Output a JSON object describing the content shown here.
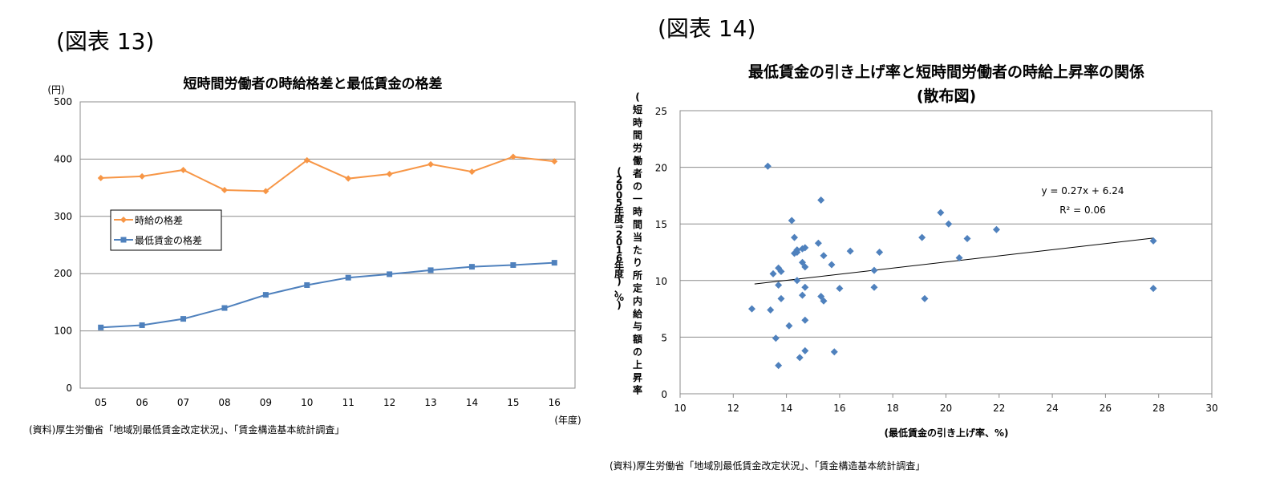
{
  "figure13_label": "(図表 13)",
  "figure14_label": "(図表 14)",
  "source13": "(資料)厚生労働省「地域別最低賃金改定状況」、「賃金構造基本統計調査」",
  "source14": "(資料)厚生労働省「地域別最低賃金改定状況」、「賃金構造基本統計調査」",
  "chart_data": [
    {
      "type": "line",
      "title": "短時間労働者の時給格差と最低賃金の格差",
      "ylabel": "(円)",
      "xlabel": "(年度)",
      "categories": [
        "05",
        "06",
        "07",
        "08",
        "09",
        "10",
        "11",
        "12",
        "13",
        "14",
        "15",
        "16"
      ],
      "ylim": [
        0,
        500
      ],
      "yticks": [
        0,
        100,
        200,
        300,
        400,
        500
      ],
      "grid": true,
      "legend": "center-left",
      "series": [
        {
          "name": "時給の格差",
          "color": "#F79646",
          "marker": "diamond",
          "values": [
            367,
            370,
            381,
            346,
            344,
            398,
            366,
            374,
            391,
            378,
            404,
            396
          ]
        },
        {
          "name": "最低賃金の格差",
          "color": "#4F81BD",
          "marker": "square",
          "values": [
            106,
            110,
            121,
            140,
            163,
            180,
            193,
            199,
            206,
            212,
            215,
            219
          ]
        }
      ]
    },
    {
      "type": "scatter",
      "title": "最低賃金の引き上げ率と短時間労働者の時給上昇率の関係",
      "subtitle": "(散布図)",
      "xlabel": "(最低賃金の引き上げ率、%)",
      "ylabel": "(短時間労働者の一時間当たり所定内給与額の上昇率",
      "ylabel2": "(2005年度⇒2016年度)、%)",
      "xlim": [
        10,
        30
      ],
      "ylim": [
        0,
        25
      ],
      "xticks": [
        10,
        12,
        14,
        16,
        18,
        20,
        22,
        24,
        26,
        28,
        30
      ],
      "yticks": [
        0,
        5,
        10,
        15,
        20,
        25
      ],
      "grid": true,
      "color": "#4F81BD",
      "marker": "diamond",
      "trendline": {
        "slope": 0.27,
        "intercept": 6.24,
        "x_range": [
          12.8,
          27.8
        ],
        "equation": "y = 0.27x + 6.24",
        "r2": "R² = 0.06"
      },
      "points": [
        [
          13.3,
          20.1
        ],
        [
          15.3,
          17.1
        ],
        [
          14.2,
          15.3
        ],
        [
          19.8,
          16.0
        ],
        [
          20.1,
          15.0
        ],
        [
          21.9,
          14.5
        ],
        [
          19.1,
          13.8
        ],
        [
          20.8,
          13.7
        ],
        [
          27.8,
          13.5
        ],
        [
          14.3,
          13.8
        ],
        [
          15.2,
          13.3
        ],
        [
          14.7,
          12.9
        ],
        [
          14.6,
          12.8
        ],
        [
          14.4,
          12.7
        ],
        [
          14.3,
          12.4
        ],
        [
          14.4,
          12.5
        ],
        [
          16.4,
          12.6
        ],
        [
          17.5,
          12.5
        ],
        [
          15.4,
          12.2
        ],
        [
          20.5,
          12.0
        ],
        [
          14.6,
          11.6
        ],
        [
          15.7,
          11.4
        ],
        [
          14.7,
          11.2
        ],
        [
          13.7,
          11.1
        ],
        [
          13.8,
          10.8
        ],
        [
          13.5,
          10.6
        ],
        [
          17.3,
          10.9
        ],
        [
          14.4,
          10.0
        ],
        [
          13.7,
          9.6
        ],
        [
          14.7,
          9.4
        ],
        [
          16.0,
          9.3
        ],
        [
          17.3,
          9.4
        ],
        [
          27.8,
          9.3
        ],
        [
          14.6,
          8.7
        ],
        [
          15.3,
          8.6
        ],
        [
          13.8,
          8.4
        ],
        [
          15.4,
          8.2
        ],
        [
          19.2,
          8.4
        ],
        [
          12.7,
          7.5
        ],
        [
          13.4,
          7.4
        ],
        [
          14.7,
          6.5
        ],
        [
          14.1,
          6.0
        ],
        [
          13.6,
          4.9
        ],
        [
          14.7,
          3.8
        ],
        [
          15.8,
          3.7
        ],
        [
          14.5,
          3.2
        ],
        [
          13.7,
          2.5
        ]
      ]
    }
  ]
}
